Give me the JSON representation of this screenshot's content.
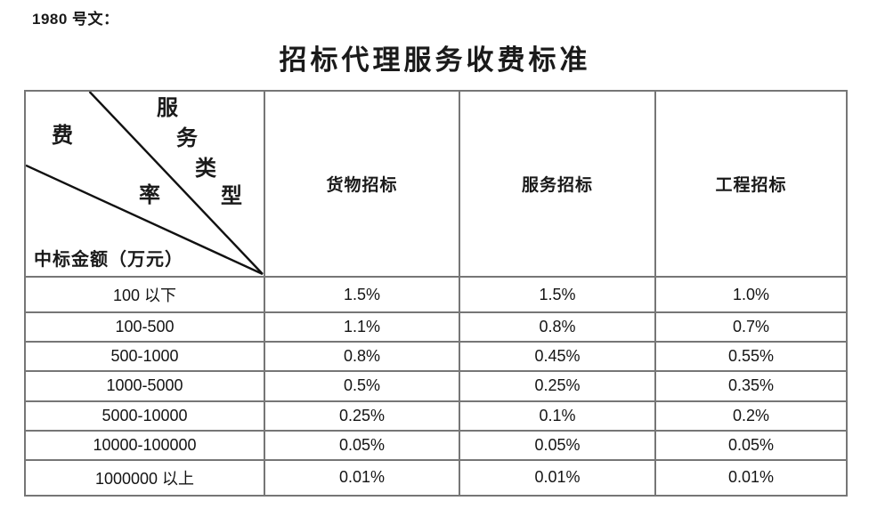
{
  "document": {
    "ref_label": "1980 号文：",
    "title": "招标代理服务收费标准"
  },
  "fee_table": {
    "corner": {
      "service_type_chars": [
        "服",
        "务",
        "类",
        "型"
      ],
      "rate_chars": [
        "费",
        "率"
      ],
      "amount_label": "中标金额（万元）"
    },
    "column_headers": [
      "货物招标",
      "服务招标",
      "工程招标"
    ],
    "rows": [
      {
        "amount": "100 以下",
        "rates": [
          "1.5%",
          "1.5%",
          "1.0%"
        ]
      },
      {
        "amount": "100-500",
        "rates": [
          "1.1%",
          "0.8%",
          "0.7%"
        ]
      },
      {
        "amount": "500-1000",
        "rates": [
          "0.8%",
          "0.45%",
          "0.55%"
        ]
      },
      {
        "amount": "1000-5000",
        "rates": [
          "0.5%",
          "0.25%",
          "0.35%"
        ]
      },
      {
        "amount": "5000-10000",
        "rates": [
          "0.25%",
          "0.1%",
          "0.2%"
        ]
      },
      {
        "amount": "10000-100000",
        "rates": [
          "0.05%",
          "0.05%",
          "0.05%"
        ]
      },
      {
        "amount": "1000000 以上",
        "rates": [
          "0.01%",
          "0.01%",
          "0.01%"
        ]
      }
    ]
  },
  "colors": {
    "background": "#ffffff",
    "text": "#1a1a1a",
    "table_border": "#767676",
    "diagonal_line": "#111111"
  }
}
